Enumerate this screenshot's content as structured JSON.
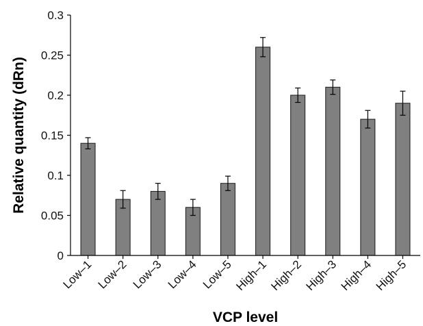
{
  "chart_data": {
    "type": "bar",
    "title": "",
    "xlabel": "VCP level",
    "ylabel": "Relative quantity (dRn)",
    "categories": [
      "Low–1",
      "Low–2",
      "Low–3",
      "Low–4",
      "Low–5",
      "High–1",
      "High–2",
      "High–3",
      "High–4",
      "High–5"
    ],
    "values": [
      0.14,
      0.07,
      0.08,
      0.06,
      0.09,
      0.26,
      0.2,
      0.21,
      0.17,
      0.19
    ],
    "error": [
      0.007,
      0.011,
      0.01,
      0.01,
      0.009,
      0.012,
      0.009,
      0.009,
      0.011,
      0.015
    ],
    "ylim": [
      0,
      0.3
    ],
    "yticks": [
      "0",
      "0.05",
      "0.1",
      "0.15",
      "0.2",
      "0.25",
      "0.3"
    ],
    "grid": false,
    "legend": "none",
    "colors": {
      "bar": "#808080",
      "bar_stroke": "#1a1a1a",
      "axis": "#000000"
    }
  }
}
